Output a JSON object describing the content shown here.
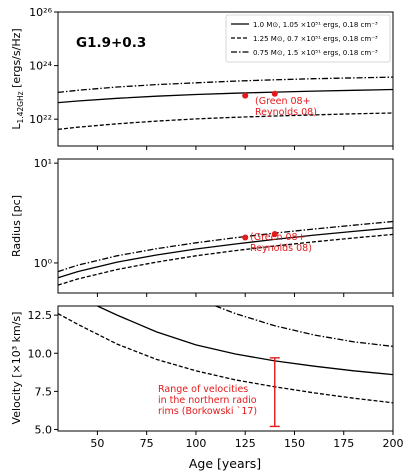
{
  "figure": {
    "title": "G1.9+0.3",
    "xlabel": "Age [years]",
    "xlim": [
      30,
      200
    ],
    "xticks": [
      50,
      75,
      100,
      125,
      150,
      175,
      200
    ],
    "legend": [
      {
        "label": "1.0 M⊙, 1.05 ×10⁵¹ ergs, 0.18 cm⁻³",
        "style": "solid"
      },
      {
        "label": "1.25 M⊙, 0.7 ×10⁵¹ ergs, 0.18 cm⁻³",
        "style": "dashed"
      },
      {
        "label": "0.75 M⊙, 1.5 ×10⁵¹ ergs, 0.18 cm⁻³",
        "style": "dashdot"
      }
    ],
    "colors": {
      "model": "#000000",
      "observation": "#e31a1c"
    }
  },
  "chart_data": [
    {
      "type": "line",
      "ylabel": "L1.42GHz [ergs/s/Hz]",
      "ylabel_main": "L",
      "ylabel_sub": "1.42GHz",
      "ylabel_rest": " [ergs/s/Hz]",
      "yscale": "log",
      "ylim_exp": [
        21,
        26
      ],
      "yticks": [
        "10²²",
        "10²⁴",
        "10²⁶"
      ],
      "ytick_exps": [
        22,
        24,
        26
      ],
      "x": [
        30,
        40,
        60,
        80,
        100,
        120,
        140,
        160,
        180,
        200
      ],
      "series": [
        {
          "style": "solid",
          "log10_values": [
            22.62,
            22.68,
            22.78,
            22.86,
            22.92,
            22.97,
            23.01,
            23.05,
            23.08,
            23.11
          ]
        },
        {
          "style": "dashed",
          "log10_values": [
            21.62,
            21.7,
            21.83,
            21.93,
            22.01,
            22.07,
            22.12,
            22.16,
            22.2,
            22.23
          ]
        },
        {
          "style": "dashdot",
          "log10_values": [
            23.0,
            23.08,
            23.2,
            23.29,
            23.36,
            23.42,
            23.47,
            23.51,
            23.54,
            23.57
          ]
        }
      ],
      "observations": [
        {
          "x": 125,
          "log10_y": 22.88
        },
        {
          "x": 140,
          "log10_y": 22.95
        }
      ],
      "annotation": [
        "(Green 08+",
        "Reynolds 08)"
      ]
    },
    {
      "type": "line",
      "ylabel": "Radius [pc]",
      "yscale": "log",
      "ylim": [
        0.5,
        11
      ],
      "yticks": [
        "10⁰",
        "10¹"
      ],
      "ytick_values": [
        1,
        10
      ],
      "x": [
        30,
        40,
        60,
        80,
        100,
        120,
        140,
        160,
        180,
        200
      ],
      "series": [
        {
          "style": "solid",
          "values": [
            0.71,
            0.82,
            1.02,
            1.2,
            1.38,
            1.55,
            1.72,
            1.9,
            2.07,
            2.25
          ]
        },
        {
          "style": "dashed",
          "values": [
            0.6,
            0.69,
            0.86,
            1.02,
            1.18,
            1.33,
            1.48,
            1.63,
            1.78,
            1.93
          ]
        },
        {
          "style": "dashdot",
          "values": [
            0.82,
            0.95,
            1.18,
            1.39,
            1.59,
            1.79,
            1.99,
            2.19,
            2.39,
            2.6
          ]
        }
      ],
      "observations": [
        {
          "x": 125,
          "y": 1.8
        },
        {
          "x": 140,
          "y": 1.95
        }
      ],
      "annotation": [
        "(Green 08+",
        "Reynolds 08)"
      ]
    },
    {
      "type": "line",
      "ylabel": "Velocity [×10³ km/s]",
      "ylim": [
        4.9,
        13.1
      ],
      "yticks": [
        "5.0",
        "7.5",
        "10.0",
        "12.5"
      ],
      "ytick_values": [
        5.0,
        7.5,
        10.0,
        12.5
      ],
      "series": [
        {
          "style": "solid",
          "x": [
            50,
            60,
            80,
            100,
            120,
            140,
            160,
            180,
            200
          ],
          "values": [
            13.1,
            12.5,
            11.4,
            10.55,
            9.95,
            9.5,
            9.15,
            8.85,
            8.6
          ]
        },
        {
          "style": "dashed",
          "x": [
            30,
            40,
            60,
            80,
            100,
            120,
            140,
            160,
            180,
            200
          ],
          "values": [
            12.6,
            11.9,
            10.6,
            9.6,
            8.85,
            8.25,
            7.8,
            7.4,
            7.05,
            6.75
          ]
        },
        {
          "style": "dashdot",
          "x": [
            110,
            120,
            140,
            160,
            180,
            200
          ],
          "values": [
            13.1,
            12.6,
            11.8,
            11.2,
            10.75,
            10.45
          ]
        }
      ],
      "errorbar": {
        "x": 140,
        "y_low": 5.2,
        "y_high": 9.7
      },
      "annotation": [
        "Range of velocities",
        "in the northern radio",
        "rims (Borkowski `17)"
      ]
    }
  ]
}
